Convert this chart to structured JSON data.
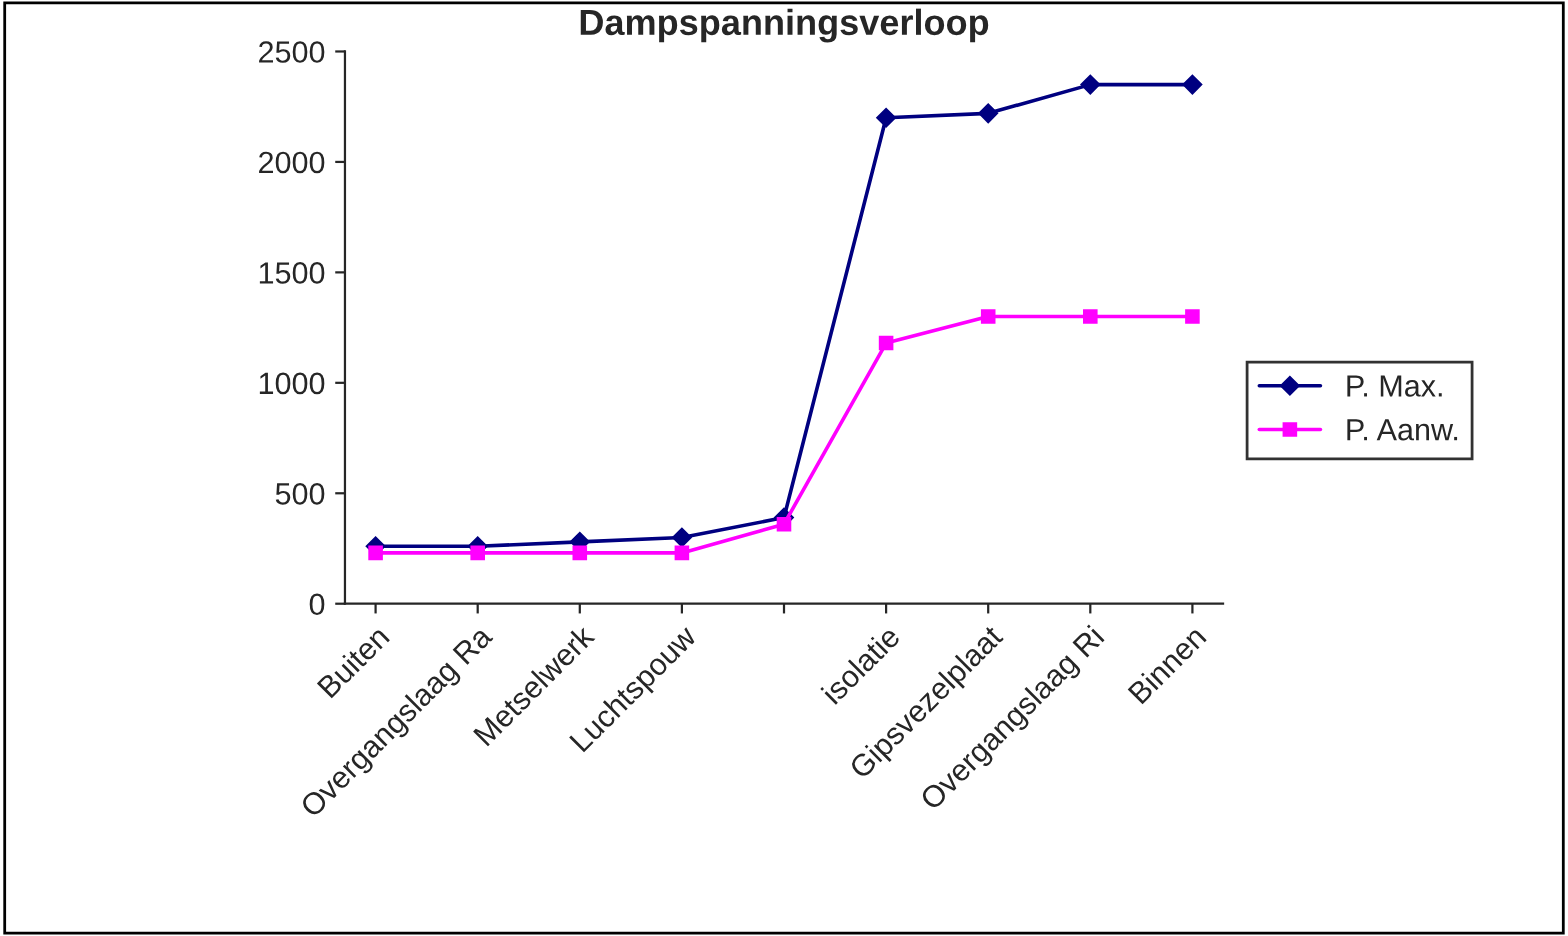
{
  "chart_data": {
    "type": "line",
    "title": "Dampspanningsverloop",
    "categories": [
      "Buiten",
      "Overgangslaag Ra",
      "Metselwerk",
      "Luchtspouw",
      null,
      "isolatie",
      "Gipsvezelplaat",
      "Overgangslaag Ri",
      "Binnen"
    ],
    "series": [
      {
        "name": "P. Max.",
        "color": "#000080",
        "marker": "diamond",
        "values": [
          260,
          260,
          280,
          300,
          390,
          2200,
          2220,
          2350,
          2350
        ]
      },
      {
        "name": "P. Aanw.",
        "color": "#ff00ff",
        "marker": "square",
        "values": [
          230,
          230,
          230,
          230,
          360,
          1180,
          1300,
          1300,
          1300
        ]
      }
    ],
    "ylim": [
      0,
      2500
    ],
    "yticks": [
      0,
      500,
      1000,
      1500,
      2000,
      2500
    ],
    "grid": false,
    "legend": "right"
  }
}
